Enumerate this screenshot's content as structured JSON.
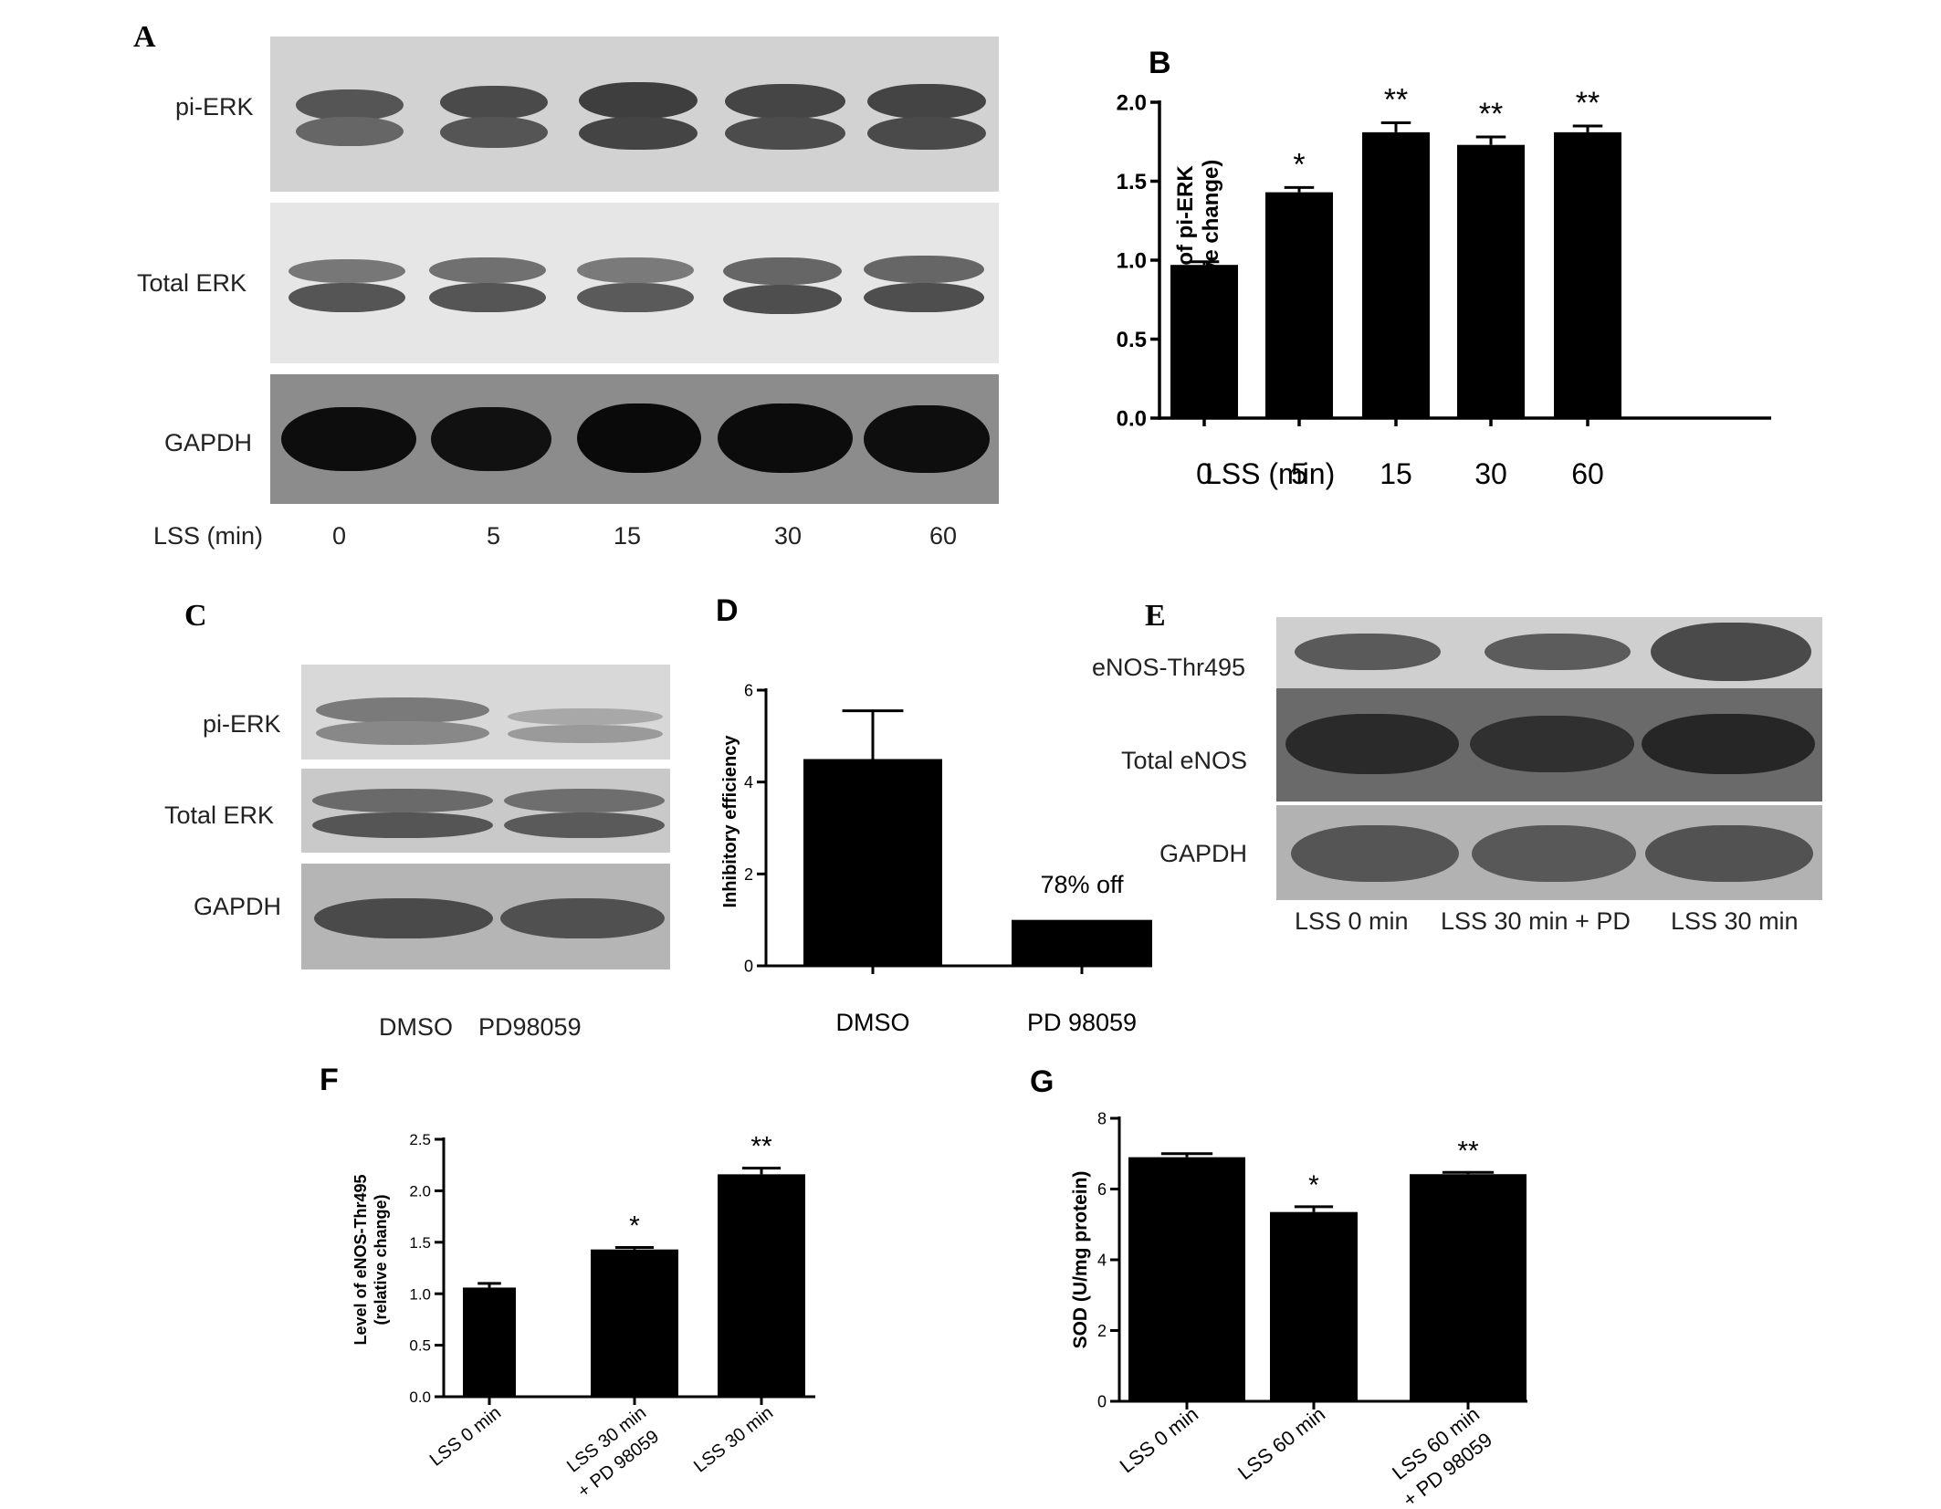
{
  "panels": {
    "A": {
      "letter": "A",
      "rows": [
        "pi-ERK",
        "Total ERK",
        "GAPDH"
      ],
      "axis_label": "LSS (min)",
      "lanes": [
        "0",
        "5",
        "15",
        "30",
        "60"
      ]
    },
    "C": {
      "letter": "C",
      "rows": [
        "pi-ERK",
        "Total ERK",
        "GAPDH"
      ],
      "lanes": [
        "DMSO",
        "PD98059"
      ]
    },
    "E": {
      "letter": "E",
      "rows": [
        "eNOS-Thr495",
        "Total eNOS",
        "GAPDH"
      ],
      "lanes": [
        "LSS 0 min",
        "LSS 30 min + PD",
        "LSS 30 min"
      ]
    }
  },
  "chart_data": [
    {
      "id": "B",
      "letter": "B",
      "type": "bar",
      "ylabel_line1": "Level of pi-ERK",
      "ylabel_line2": "(relative change)",
      "xlabel": "LSS (min)",
      "categories": [
        "0",
        "5",
        "15",
        "30",
        "60"
      ],
      "values": [
        0.97,
        1.43,
        1.81,
        1.73,
        1.81
      ],
      "errors": [
        0.02,
        0.03,
        0.06,
        0.05,
        0.04
      ],
      "significance": [
        "",
        "*",
        "**",
        "**",
        "**"
      ],
      "ylim": [
        0,
        2.0
      ],
      "yticks": [
        "0.0",
        "0.5",
        "1.0",
        "1.5",
        "2.0"
      ]
    },
    {
      "id": "D",
      "letter": "D",
      "type": "bar",
      "ylabel_line1": "Inhibitory efficiency",
      "categories": [
        "DMSO",
        "PD 98059"
      ],
      "values": [
        4.5,
        1.0
      ],
      "errors": [
        1.05,
        0
      ],
      "significance": [
        "",
        ""
      ],
      "annotation": "78% off",
      "ylim": [
        0,
        6
      ],
      "yticks": [
        "0",
        "2",
        "4",
        "6"
      ]
    },
    {
      "id": "F",
      "letter": "F",
      "type": "bar",
      "ylabel_line1": "Level of eNOS-Thr495",
      "ylabel_line2": "(relative change)",
      "categories": [
        "LSS 0 min",
        "LSS 30 min",
        "LSS 30 min"
      ],
      "category_line2": [
        "",
        "+ PD 98059",
        ""
      ],
      "values": [
        1.06,
        1.43,
        2.16
      ],
      "errors": [
        0.04,
        0.02,
        0.06
      ],
      "significance": [
        "",
        "*",
        "**"
      ],
      "ylim": [
        0,
        2.5
      ],
      "yticks": [
        "0.0",
        "0.5",
        "1.0",
        "1.5",
        "2.0",
        "2.5"
      ]
    },
    {
      "id": "G",
      "letter": "G",
      "type": "bar",
      "ylabel_line1": "SOD (U/mg protein)",
      "categories": [
        "LSS 0 min",
        "LSS 60 min",
        "LSS 60 min"
      ],
      "category_line2": [
        "",
        "",
        "+ PD 98059"
      ],
      "values": [
        6.9,
        5.35,
        6.42
      ],
      "errors": [
        0.1,
        0.15,
        0.05
      ],
      "significance": [
        "",
        "*",
        "**"
      ],
      "ylim": [
        0,
        8
      ],
      "yticks": [
        "0",
        "2",
        "4",
        "6",
        "8"
      ]
    }
  ]
}
